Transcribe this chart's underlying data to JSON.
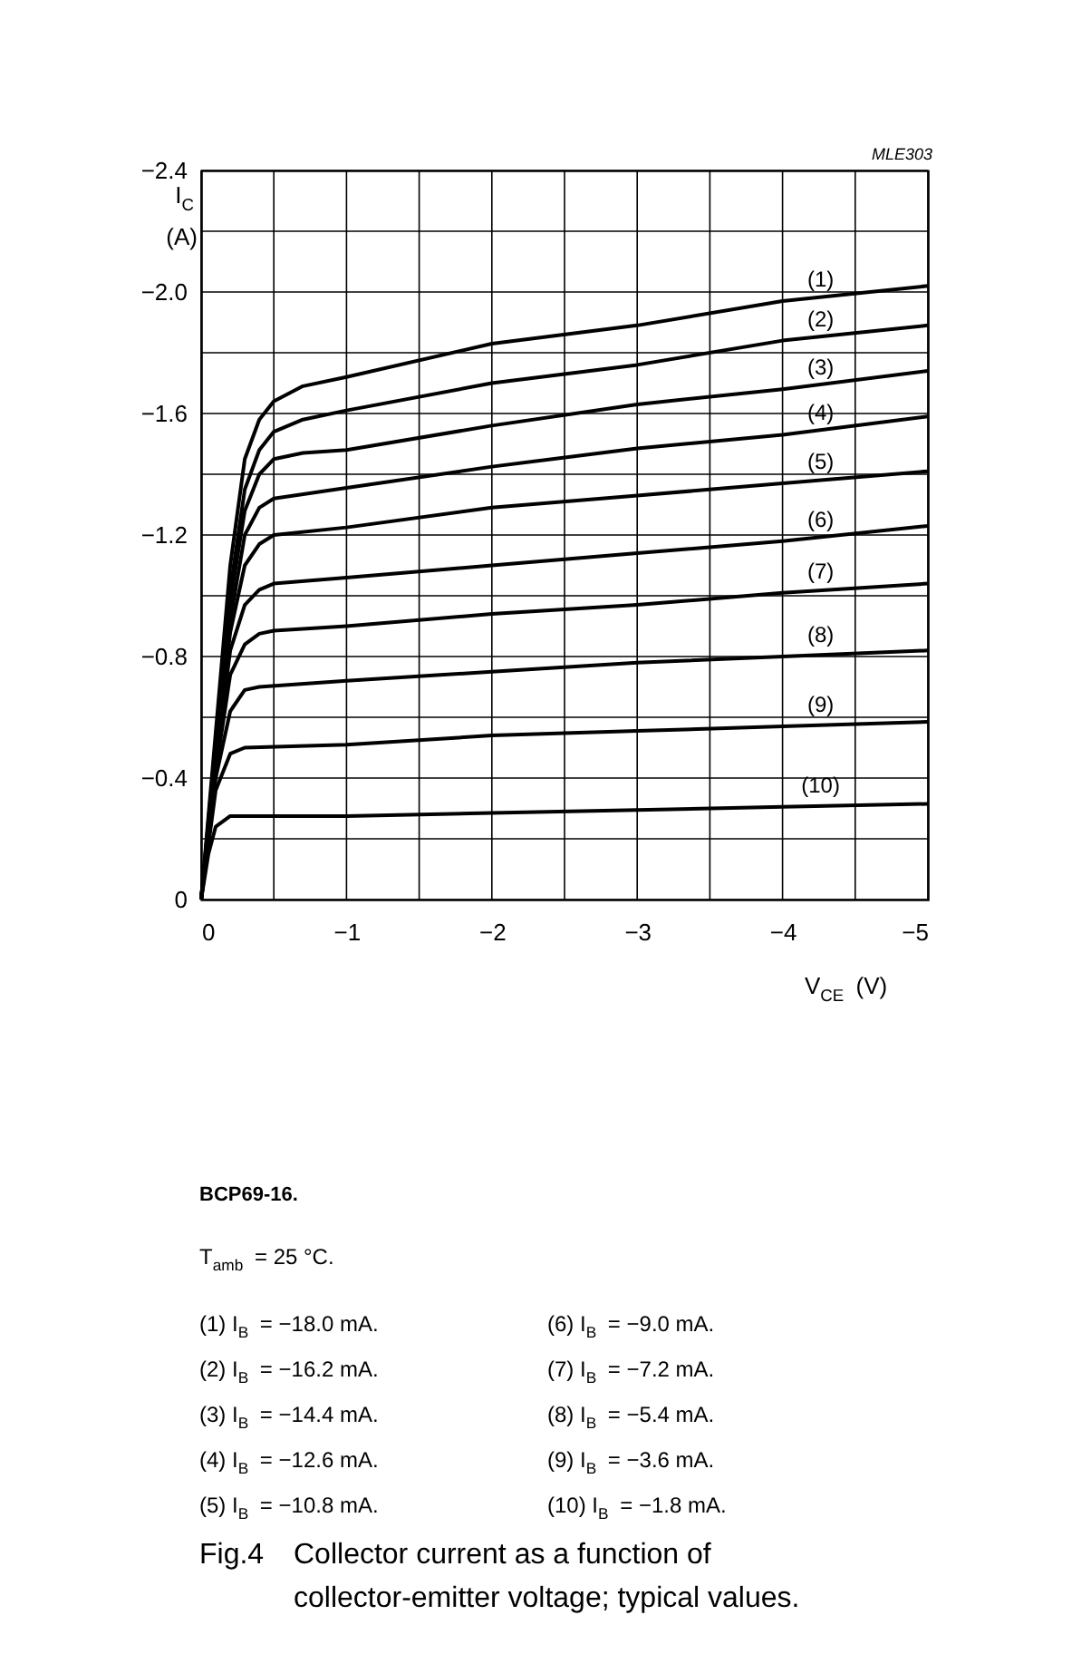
{
  "chart_data": {
    "type": "line",
    "xlabel": "V$_{CE}$ (V)",
    "ylabel": "I$_{C}$\n(A)",
    "xlim": [
      0,
      -5
    ],
    "ylim": [
      0,
      -2.4
    ],
    "xticks": [
      0,
      {
        "value": -0.5,
        "label": null
      },
      {
        "value": -1,
        "label": "−1"
      },
      {
        "value": -1.5,
        "label": null
      },
      {
        "value": -2,
        "label": "−2"
      },
      {
        "value": -2.5,
        "label": null
      },
      {
        "value": -3,
        "label": "−3"
      },
      {
        "value": -3.5,
        "label": null
      },
      {
        "value": -4,
        "label": "−4"
      },
      {
        "value": -4.5,
        "label": null
      },
      {
        "value": -5,
        "label": "−5"
      }
    ],
    "yticks": [
      0,
      {
        "value": -0.2,
        "label": null
      },
      {
        "value": -0.4,
        "label": "−0.4"
      },
      {
        "value": -0.6,
        "label": null
      },
      {
        "value": -0.8,
        "label": "−0.8"
      },
      {
        "value": -1.0,
        "label": null
      },
      {
        "value": -1.2,
        "label": "−1.2"
      },
      {
        "value": -1.4,
        "label": null
      },
      {
        "value": -1.6,
        "label": "−1.6"
      },
      {
        "value": -1.8,
        "label": null
      },
      {
        "value": -2.0,
        "label": "−2.0"
      },
      {
        "value": -2.2,
        "label": null
      },
      {
        "value": -2.4,
        "label": "−2.4"
      }
    ],
    "grid": true,
    "marker": "none",
    "line_style": "solid",
    "legend": false,
    "series": [
      {
        "name": "(1)",
        "color": "#000000",
        "x": [
          0,
          -0.1,
          -0.2,
          -0.3,
          -0.4,
          -0.5,
          -0.7,
          -1,
          -2,
          -3,
          -4,
          -5
        ],
        "values": [
          0,
          -0.55,
          -1.1,
          -1.45,
          -1.58,
          -1.64,
          -1.69,
          -1.72,
          -1.83,
          -1.89,
          -1.97,
          -2.02
        ]
      },
      {
        "name": "(2)",
        "color": "#000000",
        "x": [
          0,
          -0.1,
          -0.2,
          -0.3,
          -0.4,
          -0.5,
          -0.7,
          -1,
          -2,
          -3,
          -4,
          -5
        ],
        "values": [
          0,
          -0.52,
          -1.02,
          -1.35,
          -1.48,
          -1.54,
          -1.58,
          -1.61,
          -1.7,
          -1.76,
          -1.84,
          -1.89
        ]
      },
      {
        "name": "(3)",
        "color": "#000000",
        "x": [
          0,
          -0.1,
          -0.2,
          -0.3,
          -0.4,
          -0.5,
          -0.7,
          -1,
          -2,
          -3,
          -4,
          -5
        ],
        "values": [
          0,
          -0.5,
          -0.98,
          -1.28,
          -1.4,
          -1.45,
          -1.47,
          -1.48,
          -1.56,
          -1.63,
          -1.68,
          -1.74
        ]
      },
      {
        "name": "(4)",
        "color": "#000000",
        "x": [
          0,
          -0.1,
          -0.2,
          -0.3,
          -0.4,
          -0.5,
          -1,
          -2,
          -3,
          -4,
          -5
        ],
        "values": [
          0,
          -0.48,
          -0.92,
          -1.2,
          -1.29,
          -1.32,
          -1.355,
          -1.425,
          -1.485,
          -1.53,
          -1.59
        ]
      },
      {
        "name": "(5)",
        "color": "#000000",
        "x": [
          0,
          -0.1,
          -0.2,
          -0.3,
          -0.4,
          -0.5,
          -1,
          -2,
          -3,
          -4,
          -5
        ],
        "values": [
          0,
          -0.46,
          -0.88,
          -1.1,
          -1.17,
          -1.2,
          -1.225,
          -1.29,
          -1.33,
          -1.37,
          -1.41
        ]
      },
      {
        "name": "(6)",
        "color": "#000000",
        "x": [
          0,
          -0.1,
          -0.2,
          -0.3,
          -0.4,
          -0.5,
          -1,
          -2,
          -3,
          -4,
          -5
        ],
        "values": [
          0,
          -0.44,
          -0.82,
          -0.97,
          -1.02,
          -1.04,
          -1.06,
          -1.1,
          -1.14,
          -1.18,
          -1.23
        ]
      },
      {
        "name": "(7)",
        "color": "#000000",
        "x": [
          0,
          -0.1,
          -0.2,
          -0.3,
          -0.4,
          -0.5,
          -1,
          -2,
          -3,
          -4,
          -5
        ],
        "values": [
          0,
          -0.42,
          -0.74,
          -0.84,
          -0.875,
          -0.885,
          -0.9,
          -0.94,
          -0.97,
          -1.01,
          -1.04
        ]
      },
      {
        "name": "(8)",
        "color": "#000000",
        "x": [
          0,
          -0.1,
          -0.2,
          -0.3,
          -0.4,
          -1,
          -2,
          -3,
          -4,
          -5
        ],
        "values": [
          0,
          -0.4,
          -0.62,
          -0.69,
          -0.7,
          -0.72,
          -0.75,
          -0.78,
          -0.8,
          -0.82
        ]
      },
      {
        "name": "(9)",
        "color": "#000000",
        "x": [
          0,
          -0.1,
          -0.2,
          -0.3,
          -1,
          -2,
          -3,
          -4,
          -5
        ],
        "values": [
          0,
          -0.36,
          -0.48,
          -0.5,
          -0.51,
          -0.54,
          -0.555,
          -0.57,
          -0.585
        ]
      },
      {
        "name": "(10)",
        "color": "#000000",
        "x": [
          0,
          -0.05,
          -0.1,
          -0.2,
          -1,
          -2,
          -3,
          -4,
          -5
        ],
        "values": [
          0,
          -0.15,
          -0.24,
          -0.275,
          -0.275,
          -0.285,
          -0.295,
          -0.305,
          -0.315
        ]
      }
    ],
    "annotations": [
      "MLE303",
      "BCP69-16.",
      "T$_{amb}$ = 25 °C.",
      "(1) I$_{B}$ = −18.0 mA.",
      "(2) I$_{B}$ = −16.2 mA.",
      "(3) I$_{B}$ = −14.4 mA.",
      "(4) I$_{B}$ = −12.6 mA.",
      "(5) I$_{B}$ = −10.8 mA.",
      "(6) I$_{B}$ = −9.0 mA.",
      "(7) I$_{B}$ = −7.2 mA.",
      "(8) I$_{B}$ = −5.4 mA.",
      "(9) I$_{B}$ = −3.6 mA.",
      "(10) I$_{B}$ = −1.8 mA.",
      "Fig.4  Collector current as a function of\ncollector-emitter voltage; typical values."
    ]
  }
}
